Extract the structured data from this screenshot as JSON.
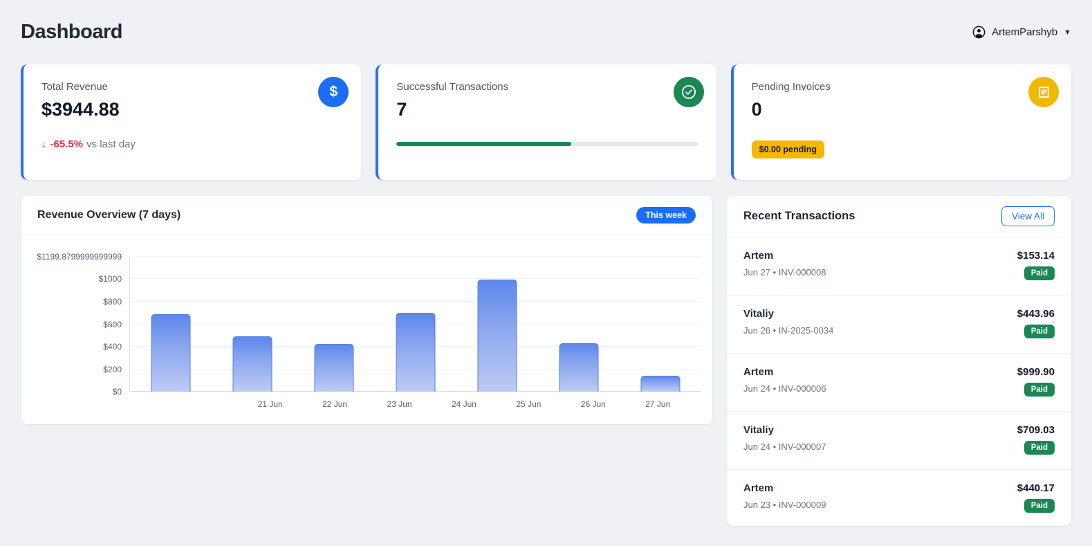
{
  "header": {
    "title": "Dashboard",
    "user": {
      "name": "ArtemParshyb"
    }
  },
  "colors": {
    "accent_blue": "#1b6ef3",
    "green": "#1a8754",
    "yellow": "#f2b705",
    "red": "#dc2f3e",
    "background": "#eff1f4",
    "bar_gradient_top": "#5d87eb",
    "bar_gradient_bottom": "#bdcbf4"
  },
  "cards": [
    {
      "label": "Total Revenue",
      "value": "$3944.88",
      "change_arrow": "↓",
      "change_pct": "-65.5%",
      "change_suffix": "vs last day",
      "icon": "dollar-icon",
      "dollar_glyph": "$"
    },
    {
      "label": "Successful Transactions",
      "value": "7",
      "progress_percent": 58,
      "icon": "check-circle-icon"
    },
    {
      "label": "Pending Invoices",
      "value": "0",
      "badge": "$0.00 pending",
      "icon": "receipt-icon"
    }
  ],
  "chart": {
    "title": "Revenue Overview (7 days)",
    "badge": "This week"
  },
  "chart_data": {
    "type": "bar",
    "title": "Revenue Overview (7 days)",
    "categories": [
      "21 Jun",
      "22 Jun",
      "23 Jun",
      "24 Jun",
      "25 Jun",
      "26 Jun",
      "27 Jun"
    ],
    "values": [
      690,
      490,
      425,
      700,
      995,
      430,
      140
    ],
    "xlabel": "",
    "ylabel": "",
    "ylim": [
      0,
      1199.8799999999999
    ],
    "grid": true,
    "legend": false,
    "y_ticks": [
      {
        "label": "$0",
        "value": 0
      },
      {
        "label": "$200",
        "value": 200
      },
      {
        "label": "$400",
        "value": 400
      },
      {
        "label": "$600",
        "value": 600
      },
      {
        "label": "$800",
        "value": 800
      },
      {
        "label": "$1000",
        "value": 1000
      },
      {
        "label": "$1199.8799999999999",
        "value": 1199.8799999999999
      }
    ]
  },
  "transactions": {
    "title": "Recent Transactions",
    "view_all_label": "View All",
    "rows": [
      {
        "name": "Artem",
        "date_line": "Jun 27 • INV-000008",
        "amount": "$153.14",
        "status": "Paid"
      },
      {
        "name": "Vitaliy",
        "date_line": "Jun 26 • IN-2025-0034",
        "amount": "$443.96",
        "status": "Paid"
      },
      {
        "name": "Artem",
        "date_line": "Jun 24 • INV-000006",
        "amount": "$999.90",
        "status": "Paid"
      },
      {
        "name": "Vitaliy",
        "date_line": "Jun 24 • INV-000007",
        "amount": "$709.03",
        "status": "Paid"
      },
      {
        "name": "Artem",
        "date_line": "Jun 23 • INV-000009",
        "amount": "$440.17",
        "status": "Paid"
      }
    ]
  }
}
